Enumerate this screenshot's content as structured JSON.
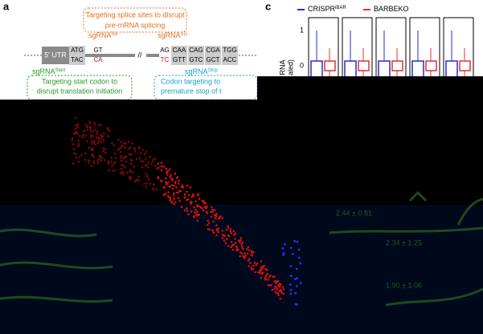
{
  "panel_a": {
    "label": "a",
    "splice_note": [
      "Targeting splice sites to disrupt",
      "pre-mRNA splicing"
    ],
    "sgrna_sa": {
      "base": "sgRNA",
      "sup": "SA"
    },
    "sgrna_sd": {
      "base": "sgRNA",
      "sup": "SD"
    },
    "utr": "5' UTR",
    "start_codon": [
      "ATG",
      "TAC"
    ],
    "donor": [
      "GT",
      "CA"
    ],
    "acceptor": [
      "AG",
      "TC"
    ],
    "codons": [
      [
        "CAA",
        "GTT"
      ],
      [
        "CAG",
        "GTC"
      ],
      [
        "CGA",
        "GCT"
      ],
      [
        "TGG",
        "ACC"
      ]
    ],
    "sgrna_start": {
      "base": "sgRNA",
      "sup": "Start"
    },
    "start_note": [
      "Targeting start codon to",
      "disrupt translation initiation"
    ],
    "sgrna_stop": {
      "base": "sgRNA",
      "sup": "Stop"
    },
    "stop_note": [
      "Codon targeting to",
      "premature stop of t"
    ]
  },
  "panel_c": {
    "label": "c",
    "legend": [
      {
        "base": "CRISPR",
        "sup": "iBAR",
        "color": "#2a2ad0"
      },
      {
        "base": "BARBEKO",
        "sup": null,
        "color": "#e03030"
      }
    ],
    "y_tick_labels": [
      "1",
      "0"
    ],
    "y_axis_label": [
      "RNA",
      "aled)"
    ]
  },
  "lower": {
    "annotations": [
      "2.44 ± 0.81",
      "2.34 ± 1.25",
      "1.90 ± 1.06"
    ]
  }
}
